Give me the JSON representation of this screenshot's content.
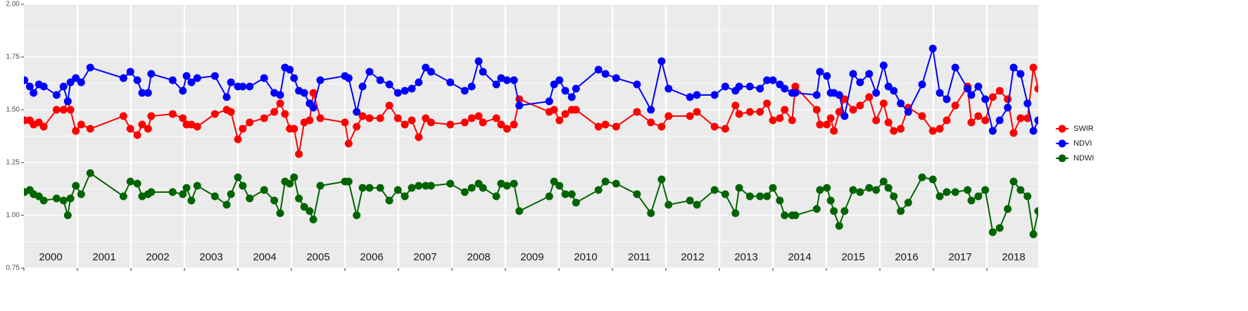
{
  "chart_data": {
    "type": "line",
    "xlim": [
      2000,
      2019
    ],
    "xticks": [
      {
        "value": 2000,
        "label": "2000"
      },
      {
        "value": 2001,
        "label": "2001"
      },
      {
        "value": 2002,
        "label": "2002"
      },
      {
        "value": 2003,
        "label": "2003"
      },
      {
        "value": 2004,
        "label": "2004"
      },
      {
        "value": 2005,
        "label": "2005"
      },
      {
        "value": 2006,
        "label": "2006"
      },
      {
        "value": 2007,
        "label": "2007"
      },
      {
        "value": 2008,
        "label": "2008"
      },
      {
        "value": 2009,
        "label": "2009"
      },
      {
        "value": 2010,
        "label": "2010"
      },
      {
        "value": 2011,
        "label": "2011"
      },
      {
        "value": 2012,
        "label": "2012"
      },
      {
        "value": 2013,
        "label": "2013"
      },
      {
        "value": 2014,
        "label": "2014"
      },
      {
        "value": 2015,
        "label": "2015"
      },
      {
        "value": 2016,
        "label": "2016"
      },
      {
        "value": 2017,
        "label": "2017"
      },
      {
        "value": 2018,
        "label": "2018"
      }
    ],
    "ylim": [
      0.75,
      2.0
    ],
    "yticks": [
      {
        "value": 0.75,
        "label": "0.75"
      },
      {
        "value": 1.0,
        "label": "1.00"
      },
      {
        "value": 1.25,
        "label": "1.25"
      },
      {
        "value": 1.5,
        "label": "1.50"
      },
      {
        "value": 1.75,
        "label": "1.75"
      },
      {
        "value": 2.0,
        "label": "2.00"
      }
    ],
    "yticks_minor": [
      0.875,
      1.125,
      1.375,
      1.625,
      1.875
    ],
    "grid": true,
    "legend": "right",
    "x": [
      2000.01,
      2000.11,
      2000.18,
      2000.28,
      2000.37,
      2000.61,
      2000.74,
      2000.82,
      2000.87,
      2000.97,
      2001.07,
      2001.24,
      2001.86,
      2001.99,
      2002.12,
      2002.21,
      2002.32,
      2002.38,
      2002.78,
      2002.97,
      2003.04,
      2003.13,
      2003.24,
      2003.57,
      2003.79,
      2003.87,
      2004.0,
      2004.09,
      2004.22,
      2004.49,
      2004.68,
      2004.79,
      2004.88,
      2004.97,
      2005.05,
      2005.14,
      2005.24,
      2005.34,
      2005.41,
      2005.54,
      2006.0,
      2006.07,
      2006.22,
      2006.33,
      2006.46,
      2006.66,
      2006.83,
      2006.99,
      2007.12,
      2007.25,
      2007.38,
      2007.51,
      2007.61,
      2007.97,
      2008.24,
      2008.37,
      2008.5,
      2008.58,
      2008.83,
      2008.92,
      2009.03,
      2009.16,
      2009.26,
      2009.82,
      2009.91,
      2010.01,
      2010.12,
      2010.24,
      2010.32,
      2010.74,
      2010.87,
      2011.07,
      2011.46,
      2011.72,
      2011.92,
      2012.05,
      2012.45,
      2012.58,
      2012.91,
      2013.11,
      2013.3,
      2013.37,
      2013.57,
      2013.76,
      2013.89,
      2014.0,
      2014.13,
      2014.22,
      2014.36,
      2014.42,
      2014.82,
      2014.88,
      2015.01,
      2015.08,
      2015.14,
      2015.24,
      2015.34,
      2015.5,
      2015.63,
      2015.8,
      2015.93,
      2016.07,
      2016.16,
      2016.26,
      2016.39,
      2016.53,
      2016.79,
      2016.99,
      2017.12,
      2017.25,
      2017.41,
      2017.64,
      2017.71,
      2017.84,
      2017.97,
      2018.11,
      2018.24,
      2018.39,
      2018.5,
      2018.63,
      2018.76,
      2018.87,
      2018.96
    ],
    "series": [
      {
        "name": "SWIR",
        "color": "#ff0000",
        "values": [
          1.45,
          1.45,
          1.43,
          1.44,
          1.42,
          1.5,
          1.5,
          1.54,
          1.5,
          1.4,
          1.43,
          1.41,
          1.47,
          1.41,
          1.38,
          1.43,
          1.41,
          1.47,
          1.48,
          1.46,
          1.43,
          1.43,
          1.42,
          1.48,
          1.5,
          1.49,
          1.36,
          1.41,
          1.44,
          1.46,
          1.49,
          1.53,
          1.48,
          1.41,
          1.41,
          1.29,
          1.44,
          1.45,
          1.58,
          1.46,
          1.44,
          1.34,
          1.42,
          1.47,
          1.46,
          1.46,
          1.52,
          1.46,
          1.43,
          1.45,
          1.37,
          1.46,
          1.44,
          1.43,
          1.44,
          1.46,
          1.47,
          1.44,
          1.46,
          1.43,
          1.41,
          1.43,
          1.55,
          1.49,
          1.5,
          1.45,
          1.48,
          1.5,
          1.5,
          1.42,
          1.43,
          1.42,
          1.49,
          1.44,
          1.42,
          1.47,
          1.47,
          1.49,
          1.42,
          1.41,
          1.52,
          1.48,
          1.49,
          1.49,
          1.53,
          1.45,
          1.46,
          1.5,
          1.45,
          1.61,
          1.5,
          1.43,
          1.43,
          1.46,
          1.4,
          1.49,
          1.55,
          1.5,
          1.52,
          1.56,
          1.45,
          1.53,
          1.44,
          1.4,
          1.41,
          1.51,
          1.47,
          1.4,
          1.41,
          1.45,
          1.52,
          1.61,
          1.44,
          1.47,
          1.45,
          1.56,
          1.59,
          1.55,
          1.39,
          1.46,
          1.46,
          1.7,
          1.6
        ]
      },
      {
        "name": "NDVI",
        "color": "#0000ff",
        "values": [
          1.64,
          1.61,
          1.58,
          1.62,
          1.61,
          1.57,
          1.61,
          1.54,
          1.63,
          1.65,
          1.63,
          1.7,
          1.65,
          1.68,
          1.64,
          1.58,
          1.58,
          1.67,
          1.64,
          1.59,
          1.66,
          1.63,
          1.65,
          1.66,
          1.56,
          1.63,
          1.61,
          1.61,
          1.61,
          1.65,
          1.58,
          1.57,
          1.7,
          1.69,
          1.65,
          1.59,
          1.58,
          1.53,
          1.51,
          1.64,
          1.66,
          1.65,
          1.49,
          1.61,
          1.68,
          1.64,
          1.62,
          1.58,
          1.59,
          1.6,
          1.63,
          1.7,
          1.68,
          1.63,
          1.59,
          1.61,
          1.73,
          1.68,
          1.62,
          1.65,
          1.64,
          1.64,
          1.52,
          1.54,
          1.62,
          1.64,
          1.59,
          1.56,
          1.6,
          1.69,
          1.67,
          1.65,
          1.62,
          1.5,
          1.73,
          1.6,
          1.56,
          1.57,
          1.57,
          1.61,
          1.59,
          1.61,
          1.61,
          1.6,
          1.64,
          1.64,
          1.62,
          1.6,
          1.58,
          1.58,
          1.57,
          1.68,
          1.66,
          1.58,
          1.58,
          1.57,
          1.47,
          1.67,
          1.63,
          1.67,
          1.58,
          1.71,
          1.61,
          1.59,
          1.53,
          1.49,
          1.62,
          1.79,
          1.58,
          1.55,
          1.7,
          1.6,
          1.57,
          1.61,
          1.55,
          1.4,
          1.45,
          1.51,
          1.7,
          1.67,
          1.53,
          1.4,
          1.45
        ]
      },
      {
        "name": "NDWI",
        "color": "#006400",
        "values": [
          1.11,
          1.12,
          1.1,
          1.09,
          1.07,
          1.08,
          1.07,
          1.0,
          1.08,
          1.14,
          1.1,
          1.2,
          1.09,
          1.16,
          1.15,
          1.09,
          1.1,
          1.11,
          1.11,
          1.1,
          1.13,
          1.07,
          1.14,
          1.09,
          1.05,
          1.1,
          1.18,
          1.14,
          1.08,
          1.12,
          1.07,
          1.01,
          1.16,
          1.15,
          1.18,
          1.08,
          1.04,
          1.02,
          0.98,
          1.14,
          1.16,
          1.16,
          1.0,
          1.13,
          1.13,
          1.13,
          1.07,
          1.12,
          1.09,
          1.13,
          1.14,
          1.14,
          1.14,
          1.15,
          1.11,
          1.13,
          1.15,
          1.13,
          1.09,
          1.15,
          1.14,
          1.15,
          1.02,
          1.09,
          1.16,
          1.14,
          1.1,
          1.1,
          1.06,
          1.12,
          1.16,
          1.15,
          1.1,
          1.01,
          1.17,
          1.05,
          1.07,
          1.05,
          1.12,
          1.1,
          1.01,
          1.13,
          1.09,
          1.09,
          1.09,
          1.13,
          1.07,
          1.0,
          1.0,
          1.0,
          1.03,
          1.12,
          1.13,
          1.07,
          1.02,
          0.95,
          1.02,
          1.12,
          1.11,
          1.13,
          1.12,
          1.16,
          1.13,
          1.09,
          1.02,
          1.06,
          1.18,
          1.17,
          1.09,
          1.11,
          1.11,
          1.12,
          1.07,
          1.09,
          1.12,
          0.92,
          0.94,
          1.03,
          1.16,
          1.12,
          1.09,
          0.91,
          1.02
        ]
      }
    ]
  }
}
